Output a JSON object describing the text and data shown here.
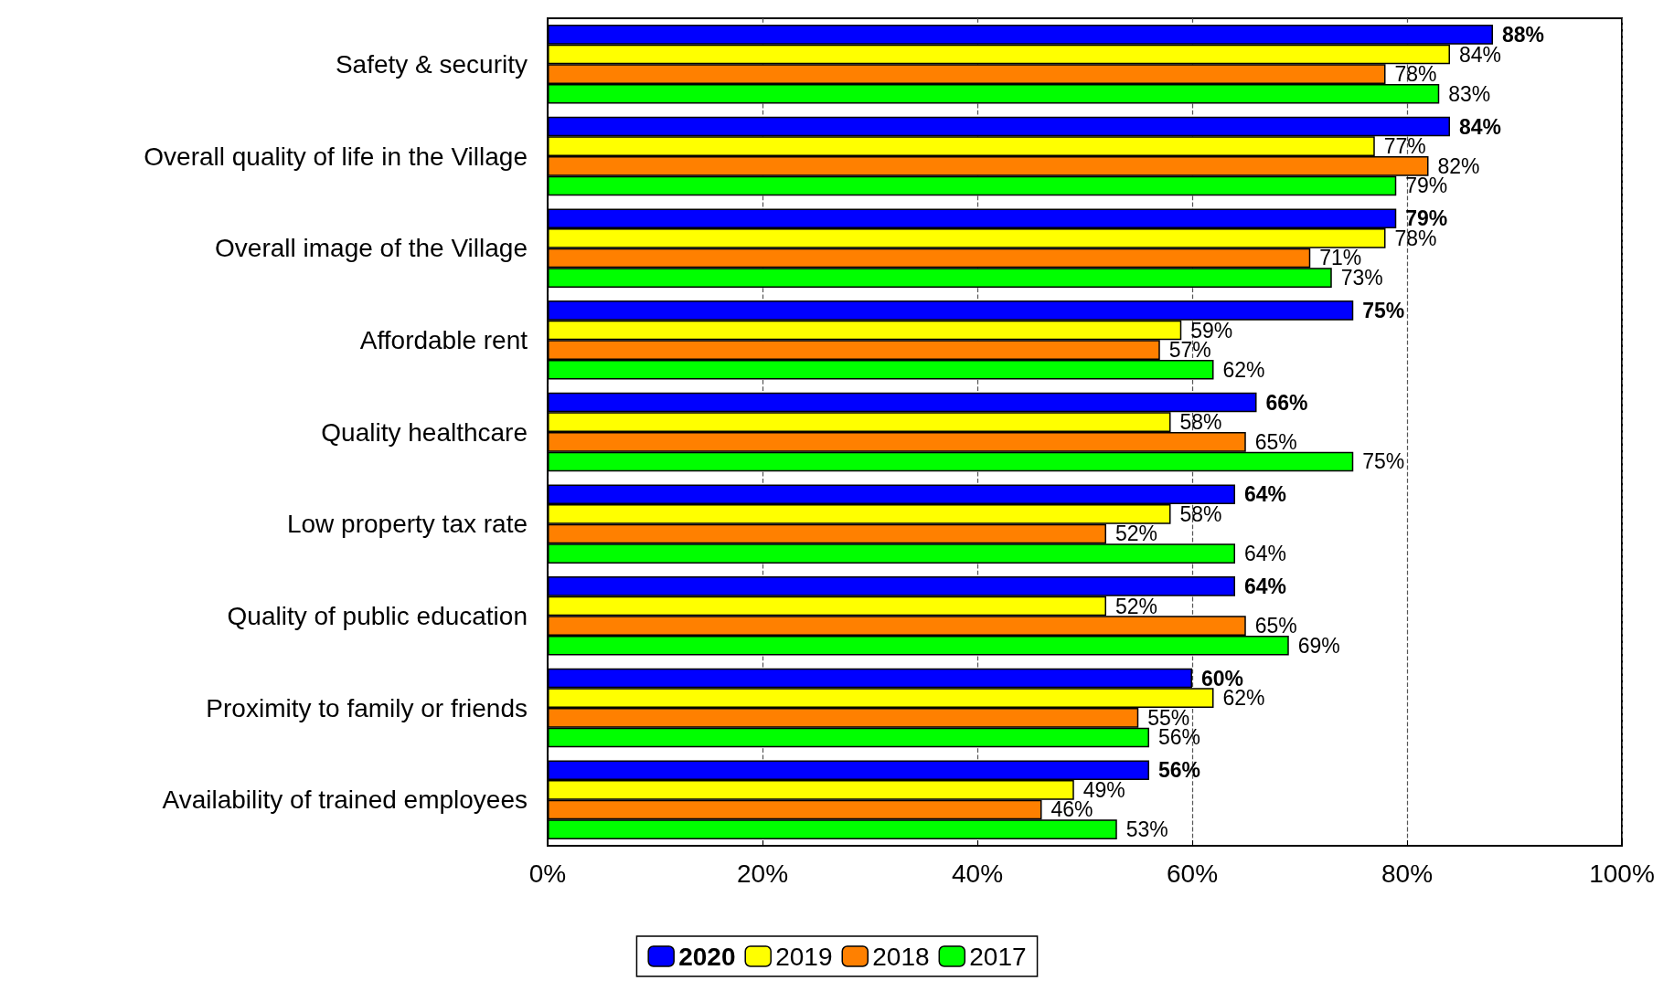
{
  "chart_data": {
    "type": "bar",
    "orientation": "horizontal",
    "categories": [
      "Safety & security",
      "Overall quality of life in the Village",
      "Overall image of the Village",
      "Affordable rent",
      "Quality healthcare",
      "Low property tax rate",
      "Quality of public education",
      "Proximity to family or friends",
      "Availability of trained employees"
    ],
    "series": [
      {
        "name": "2020",
        "color": "#0000ff",
        "values": [
          88,
          84,
          79,
          75,
          66,
          64,
          64,
          60,
          56
        ],
        "value_labels": [
          "88%",
          "84%",
          "79%",
          "75%",
          "66%",
          "64%",
          "64%",
          "60%",
          "56%"
        ]
      },
      {
        "name": "2019",
        "color": "#ffff00",
        "values": [
          84,
          77,
          78,
          59,
          58,
          58,
          52,
          62,
          49
        ],
        "value_labels": [
          "84%",
          "77%",
          "78%",
          "59%",
          "58%",
          "58%",
          "52%",
          "62%",
          "49%"
        ]
      },
      {
        "name": "2018",
        "color": "#ff8000",
        "values": [
          78,
          82,
          71,
          57,
          65,
          52,
          65,
          55,
          46
        ],
        "value_labels": [
          "78%",
          "82%",
          "71%",
          "57%",
          "65%",
          "52%",
          "65%",
          "55%",
          "46%"
        ]
      },
      {
        "name": "2017",
        "color": "#00ff00",
        "values": [
          83,
          79,
          73,
          62,
          75,
          64,
          69,
          56,
          53
        ],
        "value_labels": [
          "83%",
          "79%",
          "73%",
          "62%",
          "75%",
          "64%",
          "69%",
          "56%",
          "53%"
        ]
      }
    ],
    "xlim": [
      0,
      100
    ],
    "xticks": [
      {
        "value": 0,
        "label": "0%"
      },
      {
        "value": 20,
        "label": "20%"
      },
      {
        "value": 40,
        "label": "40%"
      },
      {
        "value": 60,
        "label": "60%"
      },
      {
        "value": 80,
        "label": "80%"
      },
      {
        "value": 100,
        "label": "100%"
      }
    ],
    "grid": "x",
    "legend": "bottom"
  }
}
